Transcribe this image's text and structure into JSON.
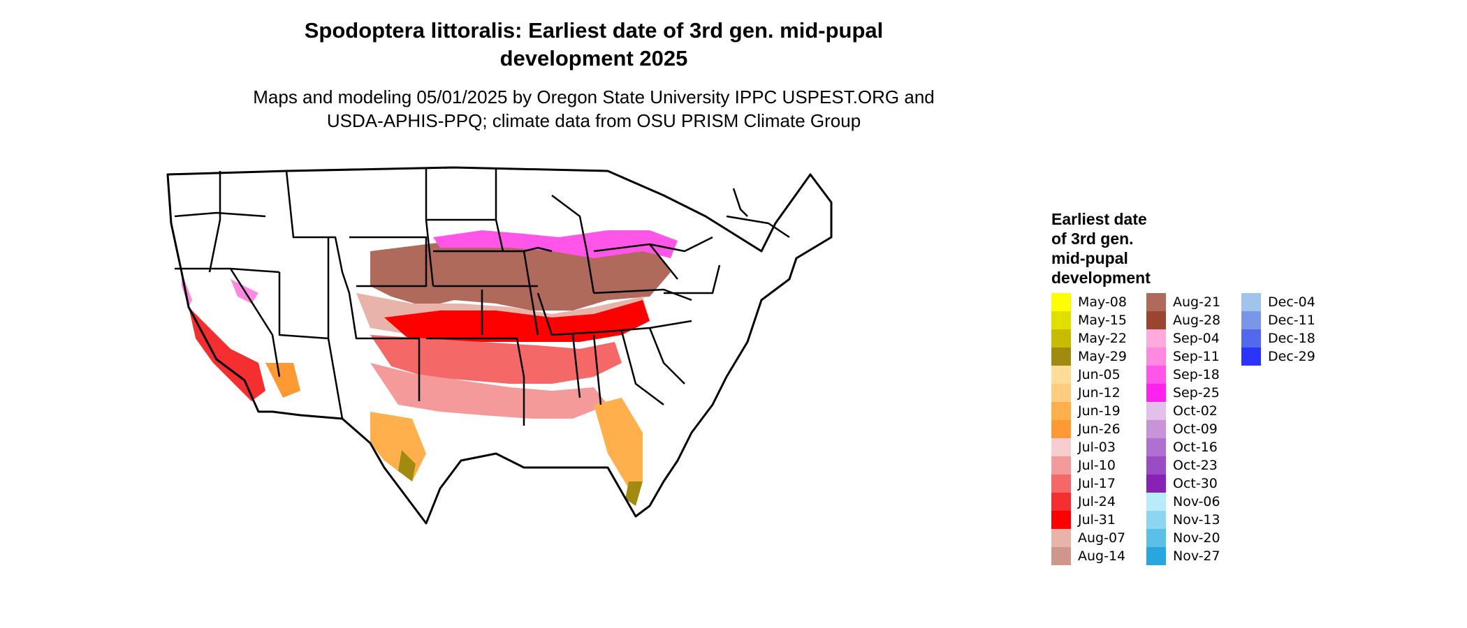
{
  "title": {
    "line1": "Spodoptera littoralis: Earliest date of 3rd gen. mid-pupal",
    "line2": "development 2025"
  },
  "subtitle": {
    "line1": "Maps and modeling 05/01/2025 by Oregon State University IPPC USPEST.ORG and",
    "line2": "USDA-APHIS-PPQ; climate data from OSU PRISM Climate Group"
  },
  "map": {
    "region": "contiguous-united-states",
    "uncolored": "#ffffff",
    "outline": "#000000"
  },
  "legend": {
    "title_lines": [
      "Earliest date",
      "of 3rd gen.",
      "mid-pupal",
      "development"
    ],
    "items": [
      {
        "label": "May-08",
        "color": "#ffff00"
      },
      {
        "label": "May-15",
        "color": "#e0e000"
      },
      {
        "label": "May-22",
        "color": "#c8bc00"
      },
      {
        "label": "May-29",
        "color": "#a08a10"
      },
      {
        "label": "Jun-05",
        "color": "#ffdd99"
      },
      {
        "label": "Jun-12",
        "color": "#ffcc80"
      },
      {
        "label": "Jun-19",
        "color": "#ffb04d"
      },
      {
        "label": "Jun-26",
        "color": "#ff9933"
      },
      {
        "label": "Jul-03",
        "color": "#f7cdd0"
      },
      {
        "label": "Jul-10",
        "color": "#f59a9a"
      },
      {
        "label": "Jul-17",
        "color": "#f56868"
      },
      {
        "label": "Jul-24",
        "color": "#f52f2f"
      },
      {
        "label": "Jul-31",
        "color": "#ff0000"
      },
      {
        "label": "Aug-07",
        "color": "#e8b4aa"
      },
      {
        "label": "Aug-14",
        "color": "#cf978b"
      },
      {
        "label": "Aug-21",
        "color": "#b06a5c"
      },
      {
        "label": "Aug-28",
        "color": "#9b4530"
      },
      {
        "label": "Sep-04",
        "color": "#ffaadd"
      },
      {
        "label": "Sep-11",
        "color": "#ff88e0"
      },
      {
        "label": "Sep-18",
        "color": "#ff55e8"
      },
      {
        "label": "Sep-25",
        "color": "#ff22ee"
      },
      {
        "label": "Oct-02",
        "color": "#e3c0ea"
      },
      {
        "label": "Oct-09",
        "color": "#c993d9"
      },
      {
        "label": "Oct-16",
        "color": "#b070d0"
      },
      {
        "label": "Oct-23",
        "color": "#9a4cc4"
      },
      {
        "label": "Oct-30",
        "color": "#8722b4"
      },
      {
        "label": "Nov-06",
        "color": "#b8ecfa"
      },
      {
        "label": "Nov-13",
        "color": "#8dd6f2"
      },
      {
        "label": "Nov-20",
        "color": "#5bbfe8"
      },
      {
        "label": "Nov-27",
        "color": "#2aa6df"
      },
      {
        "label": "Dec-04",
        "color": "#a0c4ec"
      },
      {
        "label": "Dec-11",
        "color": "#7a96e8"
      },
      {
        "label": "Dec-18",
        "color": "#5468ee"
      },
      {
        "label": "Dec-29",
        "color": "#2a34ff"
      }
    ]
  }
}
